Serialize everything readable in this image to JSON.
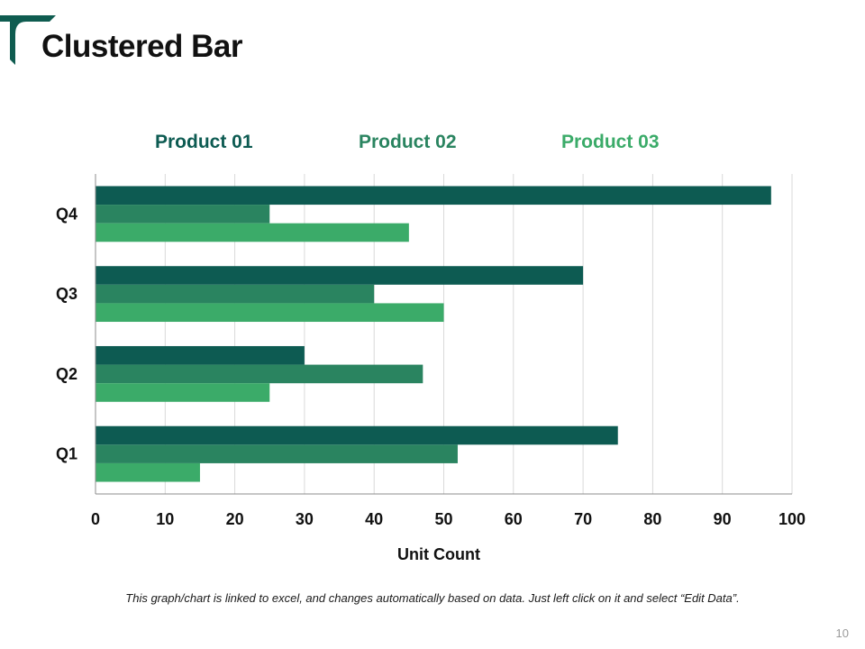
{
  "slide": {
    "title": "Clustered Bar",
    "footnote": "This graph/chart is linked to excel, and changes automatically based on data. Just left click on it and select “Edit Data”.",
    "page_number": "10"
  },
  "colors": {
    "logo": "#0f5c50",
    "product_01": "#0d5b52",
    "product_02": "#2a8460",
    "product_03": "#3bab69",
    "grid": "#d9d9d9",
    "axis": "#8c8c8c"
  },
  "icons": {
    "logo": "t-logo-icon"
  },
  "chart_data": {
    "type": "bar",
    "orientation": "horizontal",
    "categories": [
      "Q1",
      "Q2",
      "Q3",
      "Q4"
    ],
    "series": [
      {
        "name": "Product 01",
        "values": [
          75,
          30,
          70,
          97
        ]
      },
      {
        "name": "Product 02",
        "values": [
          52,
          47,
          40,
          25
        ]
      },
      {
        "name": "Product 03",
        "values": [
          15,
          25,
          50,
          45
        ]
      }
    ],
    "xlabel": "Unit Count",
    "ylabel": "",
    "xlim": [
      0,
      100
    ],
    "xticks": [
      "0",
      "10",
      "20",
      "30",
      "40",
      "50",
      "60",
      "70",
      "80",
      "90",
      "100"
    ],
    "grid": "vertical",
    "legend": "top"
  }
}
